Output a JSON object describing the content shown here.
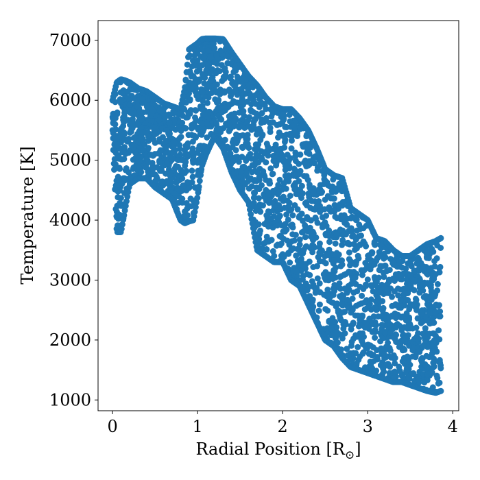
{
  "chart_data": {
    "type": "scatter",
    "xlabel": "Radial Position [R",
    "xlabel_subscript": "⊙",
    "xlabel_suffix": "]",
    "ylabel": "Temperature [K]",
    "xlim": [
      -0.17,
      4.07
    ],
    "ylim": [
      820,
      7330
    ],
    "xticks": [
      0,
      1,
      2,
      3,
      4
    ],
    "yticks": [
      1000,
      2000,
      3000,
      4000,
      5000,
      6000,
      7000
    ],
    "xtick_labels": [
      "0",
      "1",
      "2",
      "3",
      "4"
    ],
    "ytick_labels": [
      "1000",
      "2000",
      "3000",
      "4000",
      "5000",
      "6000",
      "7000"
    ],
    "grid": false,
    "marker_color": "#1f77b4",
    "series": [
      {
        "envelope_x": [
          0.0,
          0.05,
          0.1,
          0.15,
          0.2,
          0.3,
          0.4,
          0.5,
          0.6,
          0.7,
          0.8,
          0.85,
          0.9,
          0.95,
          1.0,
          1.05,
          1.1,
          1.2,
          1.3,
          1.4,
          1.5,
          1.6,
          1.7,
          1.8,
          1.9,
          2.0,
          2.1,
          2.2,
          2.3,
          2.4,
          2.5,
          2.6,
          2.7,
          2.8,
          2.9,
          3.0,
          3.1,
          3.2,
          3.3,
          3.4,
          3.5,
          3.6,
          3.7,
          3.8,
          3.86
        ],
        "envelope_upper": [
          6000,
          6300,
          6350,
          6330,
          6300,
          6200,
          6150,
          6050,
          5950,
          5900,
          5850,
          6200,
          6850,
          6900,
          6950,
          7020,
          7030,
          7030,
          7020,
          6800,
          6600,
          6400,
          6250,
          6050,
          5900,
          5850,
          5850,
          5700,
          5500,
          5200,
          4850,
          4750,
          4700,
          4200,
          4100,
          4000,
          3700,
          3650,
          3500,
          3400,
          3400,
          3500,
          3600,
          3650,
          3700
        ],
        "envelope_lower": [
          5500,
          3800,
          3800,
          4200,
          4600,
          4700,
          4700,
          4550,
          4450,
          4350,
          4000,
          3950,
          3980,
          4000,
          4400,
          4900,
          5100,
          5400,
          5200,
          4800,
          4500,
          4300,
          3500,
          3400,
          3300,
          3300,
          3000,
          2900,
          2600,
          2300,
          2000,
          1900,
          1700,
          1550,
          1500,
          1450,
          1400,
          1350,
          1300,
          1300,
          1250,
          1200,
          1150,
          1120,
          1150
        ]
      }
    ]
  }
}
